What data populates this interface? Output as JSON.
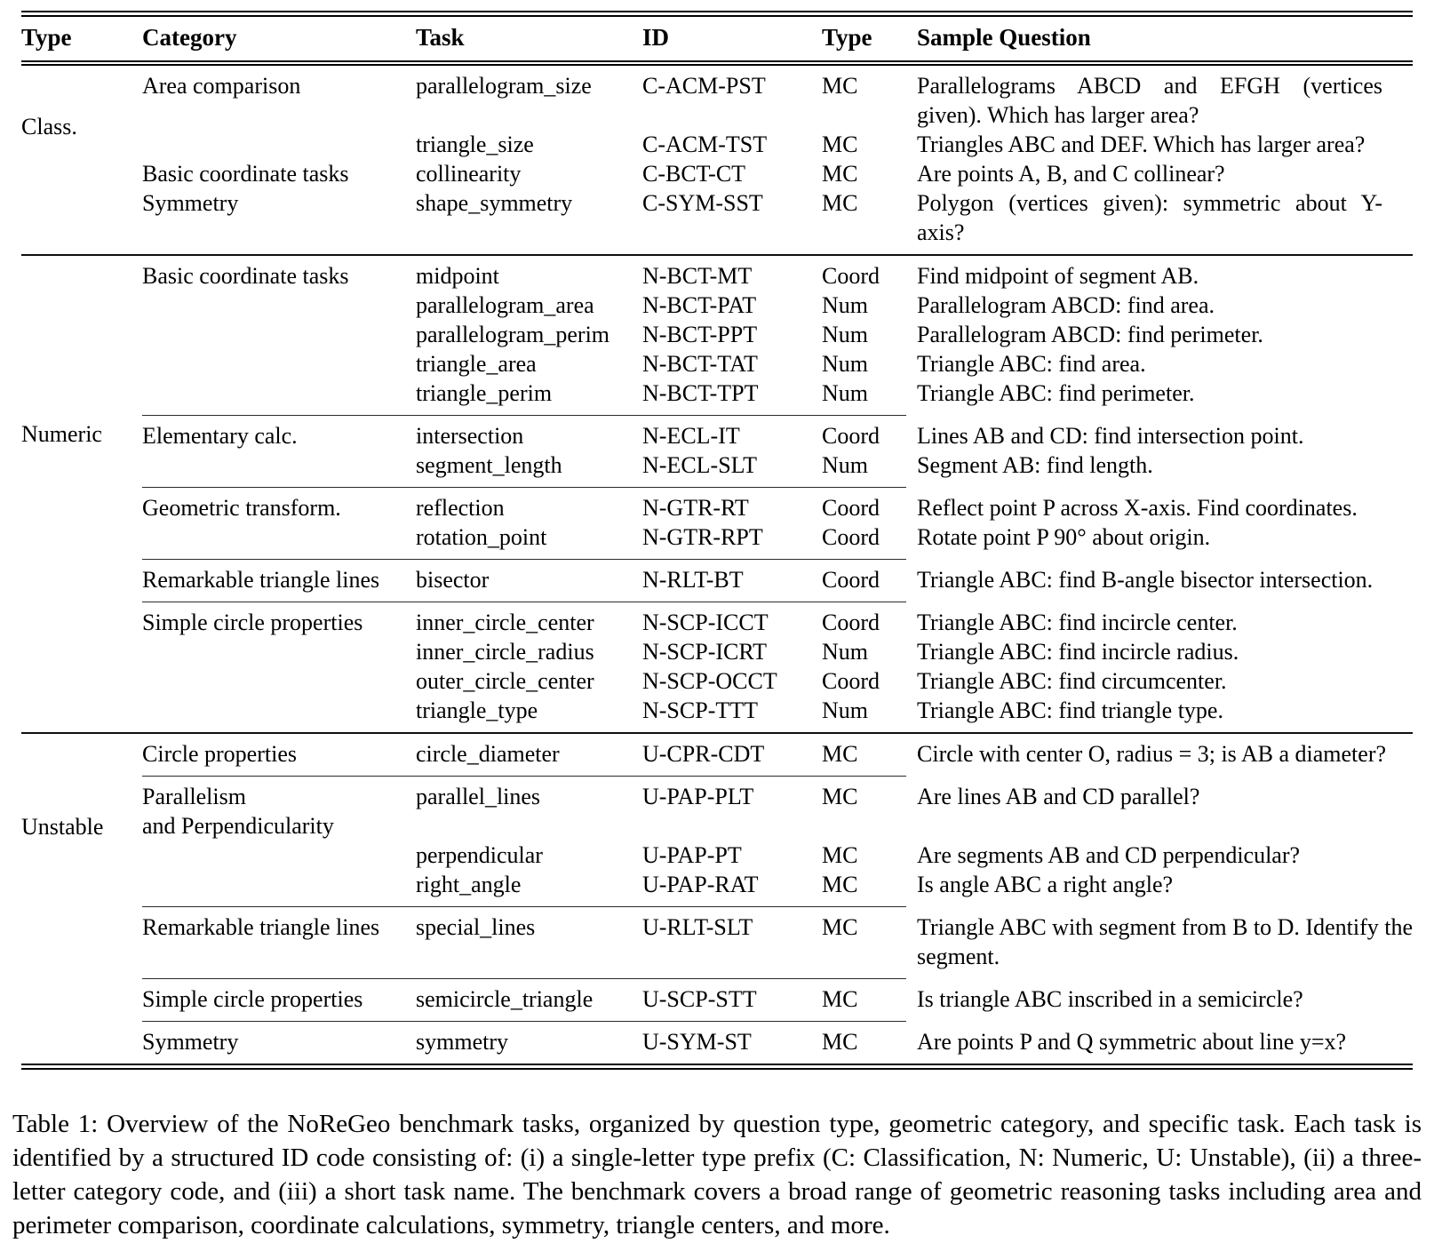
{
  "table": {
    "headers": [
      "Type",
      "Category",
      "Task",
      "ID",
      "Type",
      "Sample Question"
    ],
    "sections": [
      {
        "type_label": "Class.",
        "subsections": [
          {
            "rows": [
              {
                "category": "Area comparison",
                "task": "parallelogram_size",
                "id": "C-ACM-PST",
                "answer_type": "MC",
                "question": "Parallelograms ABCD and EFGH (vertices given). Which has larger area?"
              },
              {
                "category": "",
                "task": "triangle_size",
                "id": "C-ACM-TST",
                "answer_type": "MC",
                "question": "Triangles ABC and DEF. Which has larger area?"
              },
              {
                "category": "Basic coordinate tasks",
                "task": "collinearity",
                "id": "C-BCT-CT",
                "answer_type": "MC",
                "question": "Are points A, B, and C collinear?"
              },
              {
                "category": "Symmetry",
                "task": "shape_symmetry",
                "id": "C-SYM-SST",
                "answer_type": "MC",
                "question": "Polygon (vertices given): symmetric about Y-axis?"
              }
            ]
          }
        ]
      },
      {
        "type_label": "Numeric",
        "subsections": [
          {
            "rows": [
              {
                "category": "Basic coordinate tasks",
                "task": "midpoint",
                "id": "N-BCT-MT",
                "answer_type": "Coord",
                "question": "Find midpoint of segment AB."
              },
              {
                "category": "",
                "task": "parallelogram_area",
                "id": "N-BCT-PAT",
                "answer_type": "Num",
                "question": "Parallelogram ABCD: find area."
              },
              {
                "category": "",
                "task": "parallelogram_perim",
                "id": "N-BCT-PPT",
                "answer_type": "Num",
                "question": "Parallelogram ABCD: find perimeter."
              },
              {
                "category": "",
                "task": "triangle_area",
                "id": "N-BCT-TAT",
                "answer_type": "Num",
                "question": "Triangle ABC: find area."
              },
              {
                "category": "",
                "task": "triangle_perim",
                "id": "N-BCT-TPT",
                "answer_type": "Num",
                "question": "Triangle ABC: find perimeter."
              }
            ]
          },
          {
            "rows": [
              {
                "category": "Elementary calc.",
                "task": "intersection",
                "id": "N-ECL-IT",
                "answer_type": "Coord",
                "question": "Lines AB and CD: find intersection point."
              },
              {
                "category": "",
                "task": "segment_length",
                "id": "N-ECL-SLT",
                "answer_type": "Num",
                "question": "Segment AB: find length."
              }
            ]
          },
          {
            "rows": [
              {
                "category": "Geometric transform.",
                "task": "reflection",
                "id": "N-GTR-RT",
                "answer_type": "Coord",
                "question": "Reflect point P across X-axis. Find coordinates."
              },
              {
                "category": "",
                "task": "rotation_point",
                "id": "N-GTR-RPT",
                "answer_type": "Coord",
                "question": "Rotate point P 90° about origin."
              }
            ]
          },
          {
            "rows": [
              {
                "category": "Remarkable triangle lines",
                "task": "bisector",
                "id": "N-RLT-BT",
                "answer_type": "Coord",
                "question": "Triangle ABC: find B-angle bisector intersection."
              }
            ]
          },
          {
            "rows": [
              {
                "category": "Simple circle properties",
                "task": "inner_circle_center",
                "id": "N-SCP-ICCT",
                "answer_type": "Coord",
                "question": "Triangle ABC: find incircle center."
              },
              {
                "category": "",
                "task": "inner_circle_radius",
                "id": "N-SCP-ICRT",
                "answer_type": "Num",
                "question": "Triangle ABC: find incircle radius."
              },
              {
                "category": "",
                "task": "outer_circle_center",
                "id": "N-SCP-OCCT",
                "answer_type": "Coord",
                "question": "Triangle ABC: find circumcenter."
              },
              {
                "category": "",
                "task": "triangle_type",
                "id": "N-SCP-TTT",
                "answer_type": "Num",
                "question": "Triangle ABC: find triangle type."
              }
            ]
          }
        ]
      },
      {
        "type_label": "Unstable",
        "subsections": [
          {
            "rows": [
              {
                "category": "Circle properties",
                "task": "circle_diameter",
                "id": "U-CPR-CDT",
                "answer_type": "MC",
                "question": "Circle with center O, radius = 3; is AB a diameter?"
              }
            ]
          },
          {
            "rows": [
              {
                "category": "Parallelism\nand Perpendicularity",
                "task": "parallel_lines",
                "id": "U-PAP-PLT",
                "answer_type": "MC",
                "question": "Are lines AB and CD parallel?"
              },
              {
                "category": "",
                "task": "perpendicular",
                "id": "U-PAP-PT",
                "answer_type": "MC",
                "question": "Are segments AB and CD perpendicular?"
              },
              {
                "category": "",
                "task": "right_angle",
                "id": "U-PAP-RAT",
                "answer_type": "MC",
                "question": "Is angle ABC a right angle?"
              }
            ]
          },
          {
            "rows": [
              {
                "category": "Remarkable triangle lines",
                "task": "special_lines",
                "id": "U-RLT-SLT",
                "answer_type": "MC",
                "question": "Triangle ABC with segment from B to D. Identify the segment."
              }
            ]
          },
          {
            "rows": [
              {
                "category": "Simple circle properties",
                "task": "semicircle_triangle",
                "id": "U-SCP-STT",
                "answer_type": "MC",
                "question": "Is triangle ABC inscribed in a semicircle?"
              }
            ]
          },
          {
            "rows": [
              {
                "category": "Symmetry",
                "task": "symmetry",
                "id": "U-SYM-ST",
                "answer_type": "MC",
                "question": "Are points P and Q symmetric about line y=x?"
              }
            ]
          }
        ]
      }
    ]
  },
  "caption": "Table 1: Overview of the NoReGeo benchmark tasks, organized by question type, geometric category, and specific task. Each task is identified by a structured ID code consisting of: (i) a single-letter type prefix (C: Classification, N: Numeric, U: Unstable), (ii) a three-letter category code, and (iii) a short task name. The benchmark covers a broad range of geometric reasoning tasks including area and perimeter comparison, coordinate calculations, symmetry, triangle centers, and more."
}
